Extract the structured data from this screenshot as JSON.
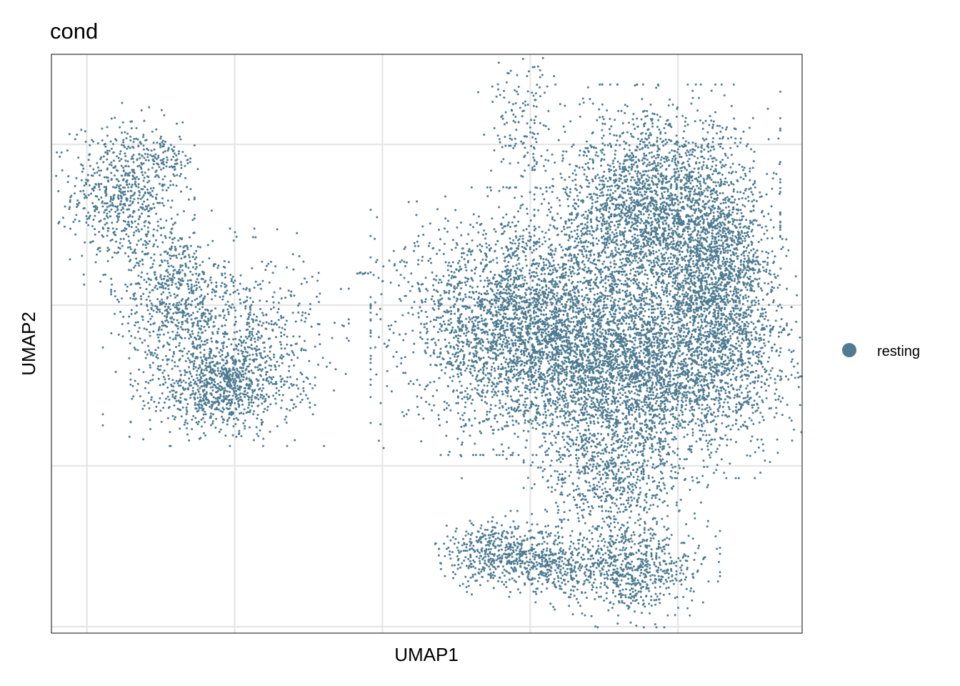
{
  "chart_data": {
    "type": "scatter",
    "title": "cond",
    "xlabel": "UMAP1",
    "ylabel": "UMAP2",
    "grid": true,
    "tick_labels_shown": false,
    "xlim": [
      -6.2,
      19.2
    ],
    "ylim": [
      -8.2,
      9.8
    ],
    "x_gridlines": [
      -5,
      0,
      5,
      10,
      15
    ],
    "y_gridlines": [
      -8,
      -3,
      2,
      7
    ],
    "legend": {
      "position": "right",
      "entries": [
        {
          "name": "resting",
          "color": "#4f7c91"
        }
      ]
    },
    "series": [
      {
        "name": "resting",
        "color": "#4f7c91",
        "clusters": [
          {
            "label": "left arm",
            "center": [
              -3.7,
              5.5
            ],
            "spread": [
              0.9,
              1.1
            ],
            "n": 700
          },
          {
            "label": "left arm tip",
            "center": [
              -2.2,
              6.5
            ],
            "spread": [
              0.5,
              0.3
            ],
            "n": 60
          },
          {
            "label": "left bridge",
            "center": [
              -2.1,
              2.6
            ],
            "spread": [
              0.8,
              0.9
            ],
            "n": 400
          },
          {
            "label": "left body",
            "center": [
              -0.3,
              1.0
            ],
            "spread": [
              1.6,
              1.3
            ],
            "n": 900
          },
          {
            "label": "left bottom",
            "center": [
              -0.4,
              -0.6
            ],
            "spread": [
              1.2,
              0.6
            ],
            "n": 700
          },
          {
            "label": "main left lobe",
            "center": [
              9.8,
              1.5
            ],
            "spread": [
              2.0,
              1.6
            ],
            "n": 3000
          },
          {
            "label": "main upper right",
            "center": [
              14.3,
              4.7
            ],
            "spread": [
              1.6,
              1.6
            ],
            "n": 2800
          },
          {
            "label": "main lower",
            "center": [
              13.8,
              0.0
            ],
            "spread": [
              2.4,
              1.3
            ],
            "n": 3400
          },
          {
            "label": "main right edge",
            "center": [
              16.5,
              2.5
            ],
            "spread": [
              0.9,
              1.8
            ],
            "n": 1400
          },
          {
            "label": "stalk",
            "center": [
              12.9,
              -3.3
            ],
            "spread": [
              1.2,
              1.0
            ],
            "n": 700
          },
          {
            "label": "bottom right",
            "center": [
              13.3,
              -6.2
            ],
            "spread": [
              1.2,
              0.7
            ],
            "n": 700
          },
          {
            "label": "bottom left",
            "center": [
              9.0,
              -5.7
            ],
            "spread": [
              1.0,
              0.5
            ],
            "n": 500
          },
          {
            "label": "bridge bottom",
            "center": [
              10.9,
              -6.1
            ],
            "spread": [
              0.9,
              0.4
            ],
            "n": 250
          },
          {
            "label": "thin streak",
            "center": [
              9.8,
              7.6
            ],
            "spread": [
              0.6,
              1.0
            ],
            "n": 150
          },
          {
            "label": "small outlier",
            "center": [
              4.3,
              3.0
            ],
            "spread": [
              0.3,
              0.05
            ],
            "n": 8
          }
        ]
      }
    ]
  }
}
